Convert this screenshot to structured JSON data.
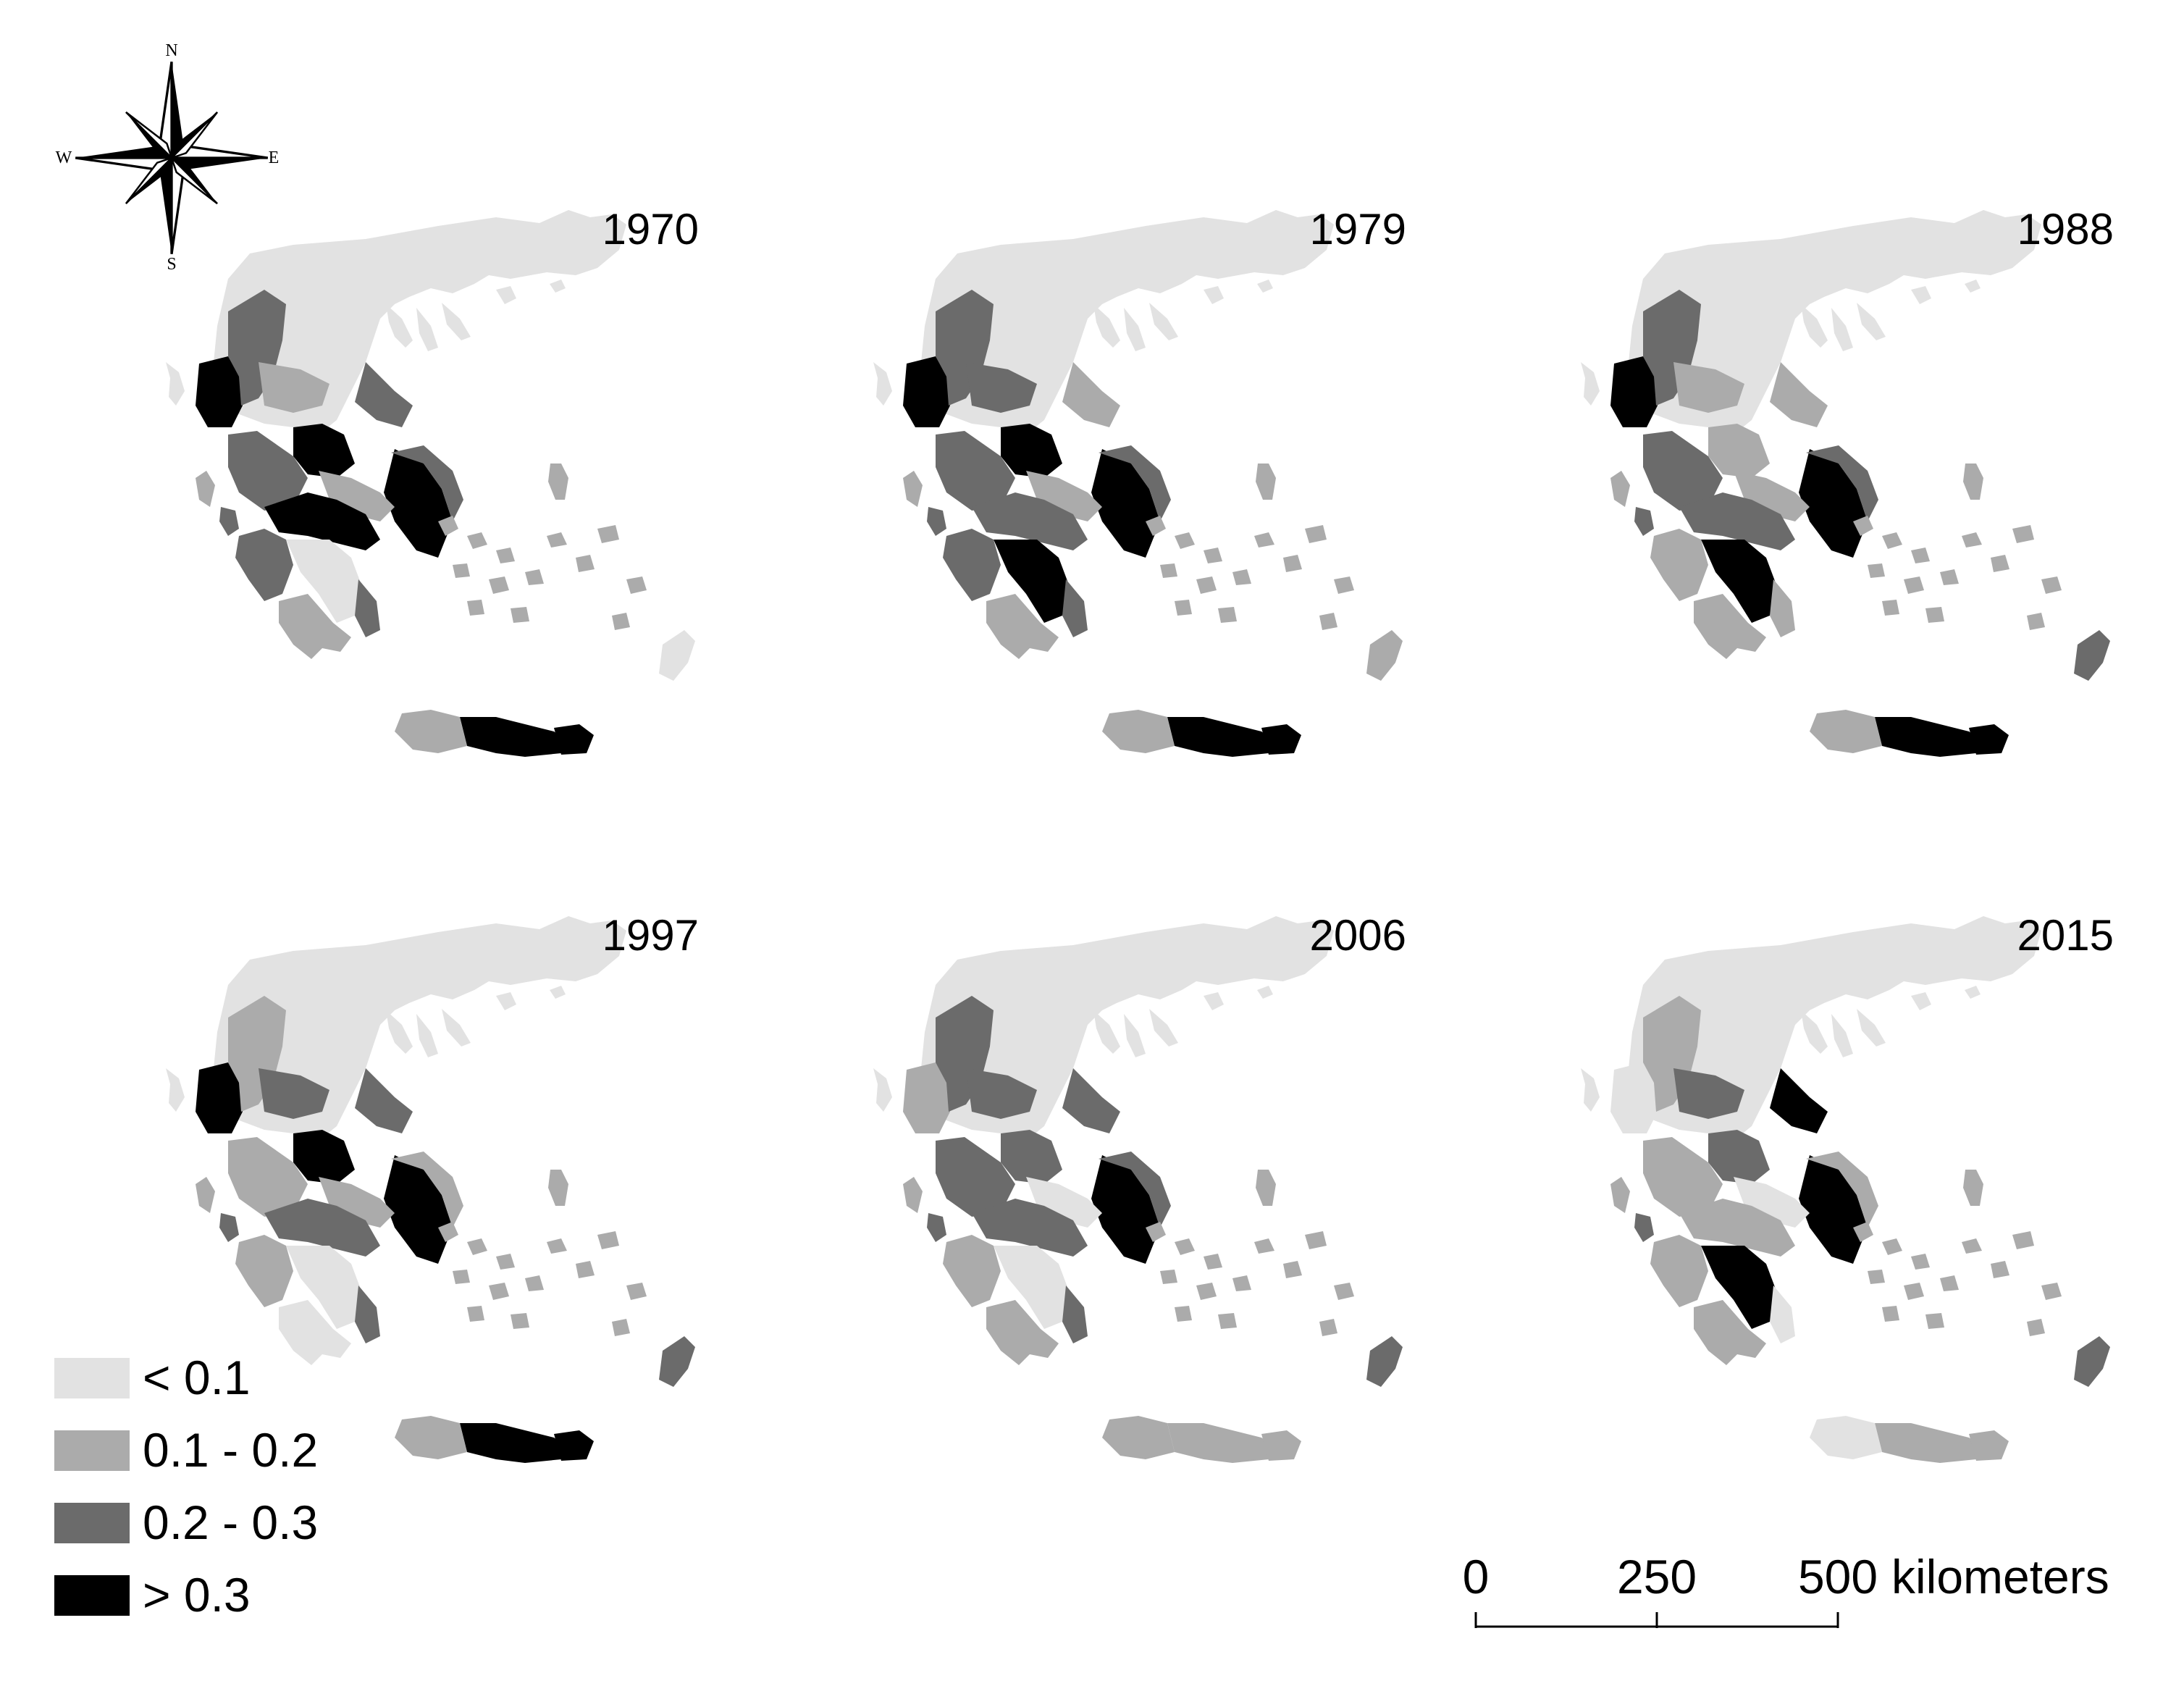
{
  "compass": {
    "north": "N",
    "south": "S",
    "east": "E",
    "west": "W"
  },
  "panels": [
    {
      "year": "1970",
      "pattern": [
        3,
        2,
        1,
        3,
        2,
        2,
        3,
        2,
        1,
        3,
        2,
        0,
        1,
        2,
        3,
        1,
        3,
        0
      ]
    },
    {
      "year": "1979",
      "pattern": [
        3,
        2,
        2,
        3,
        1,
        2,
        3,
        2,
        1,
        2,
        2,
        3,
        1,
        2,
        3,
        1,
        3,
        1
      ]
    },
    {
      "year": "1988",
      "pattern": [
        3,
        2,
        1,
        1,
        1,
        2,
        3,
        2,
        1,
        2,
        1,
        3,
        1,
        1,
        3,
        1,
        3,
        2
      ]
    },
    {
      "year": "1997",
      "pattern": [
        3,
        1,
        2,
        3,
        2,
        1,
        3,
        1,
        1,
        2,
        1,
        0,
        0,
        2,
        3,
        1,
        3,
        2
      ]
    },
    {
      "year": "2006",
      "pattern": [
        1,
        2,
        2,
        2,
        2,
        2,
        3,
        2,
        0,
        2,
        1,
        0,
        1,
        2,
        1,
        1,
        1,
        2
      ]
    },
    {
      "year": "2015",
      "pattern": [
        0,
        1,
        2,
        2,
        3,
        1,
        3,
        1,
        0,
        1,
        1,
        3,
        1,
        0,
        1,
        0,
        1,
        2
      ]
    }
  ],
  "legend": {
    "items": [
      {
        "label": "< 0.1",
        "color": "#e2e2e2"
      },
      {
        "label": "0.1 - 0.2",
        "color": "#ababab"
      },
      {
        "label": "0.2 - 0.3",
        "color": "#6b6b6b"
      },
      {
        "label": "> 0.3",
        "color": "#000000"
      }
    ]
  },
  "scale_bar": {
    "ticks": [
      "0",
      "250",
      "500"
    ],
    "unit": "kilometers"
  }
}
